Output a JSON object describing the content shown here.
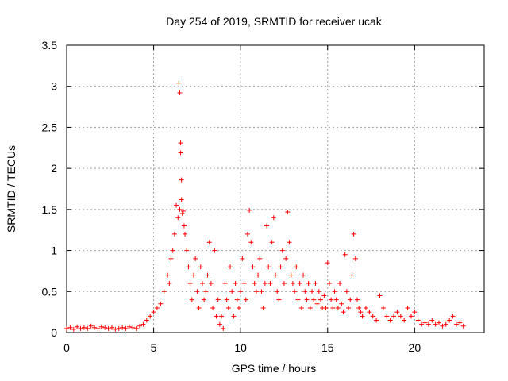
{
  "chart_data": {
    "type": "scatter",
    "title": "Day 254 of 2019, SRMTID for receiver ucak",
    "xlabel": "GPS time / hours",
    "ylabel": "SRMTID / TECUs",
    "xlim": [
      0,
      24
    ],
    "ylim": [
      0,
      3.5
    ],
    "xticks": [
      0,
      5,
      10,
      15,
      20
    ],
    "xtick_labels": [
      "0",
      "5",
      "10",
      "15",
      "20"
    ],
    "yticks": [
      0,
      0.5,
      1,
      1.5,
      2,
      2.5,
      3,
      3.5
    ],
    "ytick_labels": [
      "0",
      "0.5",
      "1",
      "1.5",
      "2",
      "2.5",
      "3",
      "3.5"
    ],
    "grid": true,
    "marker": "+",
    "series": [
      {
        "name": "SRMTID",
        "color": "#ff0000",
        "x": [
          0.0,
          0.2,
          0.4,
          0.6,
          0.8,
          1.0,
          1.2,
          1.4,
          1.6,
          1.8,
          2.0,
          2.2,
          2.4,
          2.6,
          2.8,
          3.0,
          3.2,
          3.4,
          3.6,
          3.8,
          4.0,
          4.2,
          4.4,
          4.6,
          4.8,
          5.0,
          5.2,
          5.4,
          5.6,
          5.8,
          5.9,
          6.0,
          6.1,
          6.2,
          6.3,
          6.4,
          6.45,
          6.5,
          6.5,
          6.55,
          6.55,
          6.6,
          6.6,
          6.65,
          6.7,
          6.75,
          6.8,
          6.9,
          7.0,
          7.1,
          7.2,
          7.3,
          7.4,
          7.5,
          7.6,
          7.7,
          7.8,
          7.9,
          8.0,
          8.1,
          8.2,
          8.3,
          8.4,
          8.5,
          8.6,
          8.7,
          8.8,
          8.9,
          9.0,
          9.1,
          9.2,
          9.3,
          9.4,
          9.5,
          9.6,
          9.7,
          9.8,
          9.9,
          10.0,
          10.1,
          10.2,
          10.3,
          10.4,
          10.5,
          10.6,
          10.7,
          10.8,
          10.9,
          11.0,
          11.1,
          11.2,
          11.3,
          11.4,
          11.5,
          11.6,
          11.7,
          11.8,
          11.9,
          12.0,
          12.1,
          12.2,
          12.3,
          12.4,
          12.5,
          12.6,
          12.7,
          12.8,
          12.9,
          13.0,
          13.1,
          13.2,
          13.3,
          13.4,
          13.5,
          13.6,
          13.7,
          13.8,
          13.9,
          14.0,
          14.1,
          14.2,
          14.3,
          14.4,
          14.5,
          14.6,
          14.7,
          14.8,
          14.9,
          15.0,
          15.1,
          15.2,
          15.3,
          15.4,
          15.5,
          15.6,
          15.7,
          15.8,
          15.9,
          16.0,
          16.1,
          16.2,
          16.3,
          16.4,
          16.5,
          16.6,
          16.7,
          16.8,
          16.9,
          17.0,
          17.2,
          17.4,
          17.6,
          17.8,
          18.0,
          18.2,
          18.4,
          18.6,
          18.8,
          19.0,
          19.2,
          19.4,
          19.6,
          19.8,
          20.0,
          20.2,
          20.4,
          20.6,
          20.8,
          21.0,
          21.2,
          21.4,
          21.6,
          21.8,
          22.0,
          22.2,
          22.4,
          22.6,
          22.8
        ],
        "y": [
          0.05,
          0.06,
          0.04,
          0.07,
          0.05,
          0.06,
          0.05,
          0.08,
          0.06,
          0.05,
          0.07,
          0.06,
          0.05,
          0.06,
          0.04,
          0.05,
          0.06,
          0.05,
          0.07,
          0.06,
          0.05,
          0.08,
          0.1,
          0.15,
          0.2,
          0.25,
          0.3,
          0.35,
          0.5,
          0.7,
          0.6,
          0.9,
          1.0,
          1.2,
          1.55,
          1.4,
          3.04,
          2.92,
          1.5,
          2.31,
          2.19,
          1.86,
          1.62,
          1.45,
          1.48,
          1.3,
          1.2,
          1.0,
          0.8,
          0.6,
          0.4,
          0.7,
          0.9,
          0.5,
          0.3,
          0.8,
          0.6,
          0.4,
          0.5,
          0.7,
          1.1,
          0.6,
          0.3,
          1.0,
          0.2,
          0.4,
          0.1,
          0.2,
          0.05,
          0.6,
          0.4,
          0.3,
          0.8,
          0.5,
          0.2,
          0.6,
          0.4,
          0.3,
          0.5,
          0.9,
          0.6,
          0.4,
          1.2,
          1.49,
          1.1,
          0.8,
          0.6,
          0.5,
          0.7,
          0.9,
          0.5,
          0.3,
          0.6,
          1.3,
          0.8,
          0.6,
          1.1,
          1.4,
          0.7,
          0.5,
          0.4,
          0.8,
          1.0,
          0.6,
          0.9,
          1.47,
          1.1,
          0.7,
          0.6,
          0.5,
          0.8,
          0.4,
          0.6,
          0.3,
          0.7,
          0.5,
          0.4,
          0.6,
          0.3,
          0.5,
          0.4,
          0.6,
          0.35,
          0.5,
          0.4,
          0.3,
          0.45,
          0.3,
          0.85,
          0.6,
          0.4,
          0.3,
          0.5,
          0.4,
          0.3,
          0.6,
          0.35,
          0.25,
          0.95,
          0.5,
          0.3,
          0.4,
          0.7,
          1.2,
          0.9,
          0.4,
          0.3,
          0.25,
          0.2,
          0.3,
          0.25,
          0.2,
          0.15,
          0.45,
          0.3,
          0.2,
          0.15,
          0.2,
          0.25,
          0.2,
          0.15,
          0.3,
          0.2,
          0.25,
          0.15,
          0.1,
          0.12,
          0.1,
          0.15,
          0.1,
          0.12,
          0.08,
          0.1,
          0.15,
          0.2,
          0.1,
          0.12,
          0.08
        ]
      }
    ]
  }
}
